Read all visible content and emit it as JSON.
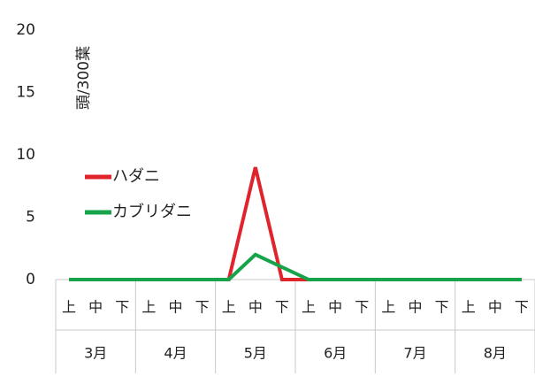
{
  "chart_data": {
    "type": "line",
    "ylabel": "頭/300葉",
    "ylim": [
      0,
      20
    ],
    "yticks": [
      "0",
      "5",
      "10",
      "15",
      "20"
    ],
    "categories": [
      "上",
      "中",
      "下",
      "上",
      "中",
      "下",
      "上",
      "中",
      "下",
      "上",
      "中",
      "下",
      "上",
      "中",
      "下",
      "上",
      "中",
      "下"
    ],
    "groups": [
      {
        "label": "3月",
        "span": 3
      },
      {
        "label": "4月",
        "span": 3
      },
      {
        "label": "5月",
        "span": 3
      },
      {
        "label": "6月",
        "span": 3
      },
      {
        "label": "7月",
        "span": 3
      },
      {
        "label": "8月",
        "span": 3
      }
    ],
    "series": [
      {
        "name": "ハダニ",
        "color": "#e0242c",
        "values": [
          0,
          0,
          0,
          0,
          0,
          0,
          0,
          9,
          0,
          0,
          0,
          0,
          0,
          0,
          0,
          0,
          0,
          0
        ]
      },
      {
        "name": "カブリダニ",
        "color": "#16a34a",
        "values": [
          0,
          0,
          0,
          0,
          0,
          0,
          0,
          2,
          1,
          0,
          0,
          0,
          0,
          0,
          0,
          0,
          0,
          0
        ]
      }
    ],
    "legend_position": "upper-left",
    "grid": false
  }
}
